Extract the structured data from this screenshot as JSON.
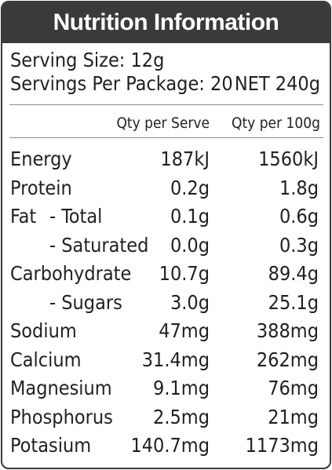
{
  "title": "Nutrition Information",
  "serving_size": "Serving Size: 12g",
  "servings_per_package": "Servings Per Package: 20",
  "net": "NET 240g",
  "columns": {
    "per_serve": "Qty per Serve",
    "per_100g": "Qty per 100g"
  },
  "rows": [
    {
      "label": "Energy",
      "sub": "",
      "per_serve": "187kJ",
      "per_100g": "1560kJ"
    },
    {
      "label": "Protein",
      "sub": "",
      "per_serve": "0.2g",
      "per_100g": "1.8g"
    },
    {
      "label": "Fat",
      "sub": "- Total",
      "per_serve": "0.1g",
      "per_100g": "0.6g"
    },
    {
      "label": "",
      "sub": "- Saturated",
      "per_serve": "0.0g",
      "per_100g": "0.3g"
    },
    {
      "label": "Carbohydrate",
      "sub": "",
      "per_serve": "10.7g",
      "per_100g": "89.4g"
    },
    {
      "label": "",
      "sub": "- Sugars",
      "per_serve": "3.0g",
      "per_100g": "25.1g"
    },
    {
      "label": "Sodium",
      "sub": "",
      "per_serve": "47mg",
      "per_100g": "388mg"
    },
    {
      "label": "Calcium",
      "sub": "",
      "per_serve": "31.4mg",
      "per_100g": "262mg"
    },
    {
      "label": "Magnesium",
      "sub": "",
      "per_serve": "9.1mg",
      "per_100g": "76mg"
    },
    {
      "label": "Phosphorus",
      "sub": "",
      "per_serve": "2.5mg",
      "per_100g": "21mg"
    },
    {
      "label": "Potasium",
      "sub": "",
      "per_serve": "140.7mg",
      "per_100g": "1173mg"
    }
  ]
}
